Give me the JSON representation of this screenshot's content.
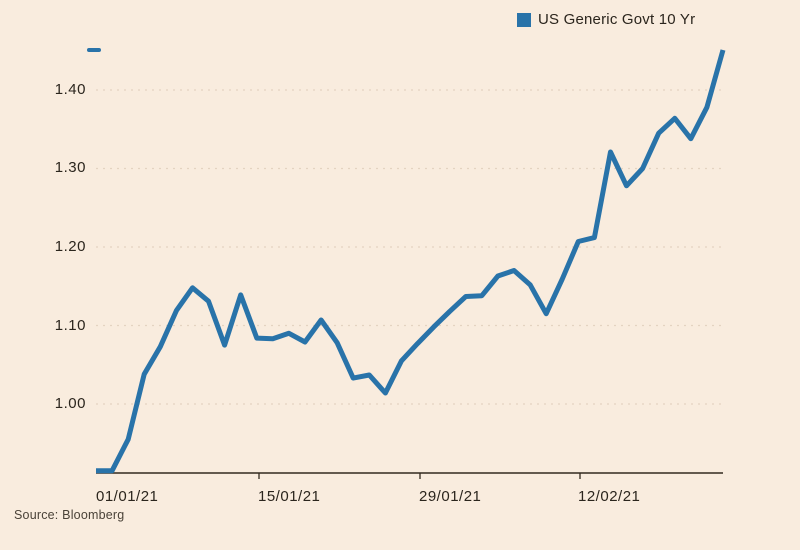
{
  "legend": {
    "label": "US Generic Govt 10 Yr"
  },
  "source_text": "Source: Bloomberg",
  "colors": {
    "background": "#f9ecde",
    "line": "#2973a9",
    "text": "#2b251d",
    "muted_text": "#4a4238",
    "grid": "#e4d3c1",
    "axis": "#332a1f"
  },
  "y_axis": {
    "tick_labels": [
      "1.40",
      "1.30",
      "1.20",
      "1.10",
      "1.00"
    ]
  },
  "x_axis": {
    "tick_labels": [
      "01/01/21",
      "15/01/21",
      "29/01/21",
      "12/02/21"
    ]
  },
  "chart_data": {
    "type": "line",
    "title": "",
    "legend": [
      "US Generic Govt 10 Yr"
    ],
    "legend_position": "top-right",
    "source": "Bloomberg",
    "grid": "horizontal-dotted",
    "ylim": [
      0.9,
      1.47
    ],
    "y_ticks": [
      1.4,
      1.3,
      1.2,
      1.1,
      1.0
    ],
    "x_ticks": [
      "01/01/21",
      "15/01/21",
      "29/01/21",
      "12/02/21"
    ],
    "last_value": 1.45,
    "x": [
      "01/01/21",
      "04/01/21",
      "05/01/21",
      "06/01/21",
      "07/01/21",
      "08/01/21",
      "11/01/21",
      "12/01/21",
      "13/01/21",
      "14/01/21",
      "15/01/21",
      "18/01/21",
      "19/01/21",
      "20/01/21",
      "21/01/21",
      "22/01/21",
      "25/01/21",
      "26/01/21",
      "27/01/21",
      "28/01/21",
      "29/01/21",
      "01/02/21",
      "02/02/21",
      "03/02/21",
      "04/02/21",
      "05/02/21",
      "08/02/21",
      "09/02/21",
      "10/02/21",
      "11/02/21",
      "12/02/21",
      "15/02/21",
      "16/02/21",
      "17/02/21",
      "18/02/21",
      "19/02/21",
      "22/02/21",
      "23/02/21",
      "24/02/21",
      "25/02/21"
    ],
    "series": [
      {
        "name": "US Generic Govt 10 Yr",
        "values": [
          0.915,
          0.915,
          0.955,
          1.038,
          1.073,
          1.119,
          1.148,
          1.131,
          1.075,
          1.139,
          1.084,
          1.083,
          1.09,
          1.079,
          1.107,
          1.078,
          1.033,
          1.037,
          1.014,
          1.055,
          1.077,
          1.098,
          1.118,
          1.137,
          1.138,
          1.163,
          1.17,
          1.152,
          1.115,
          1.159,
          1.207,
          1.212,
          1.321,
          1.278,
          1.3,
          1.345,
          1.364,
          1.338,
          1.378,
          1.451
        ]
      }
    ]
  }
}
